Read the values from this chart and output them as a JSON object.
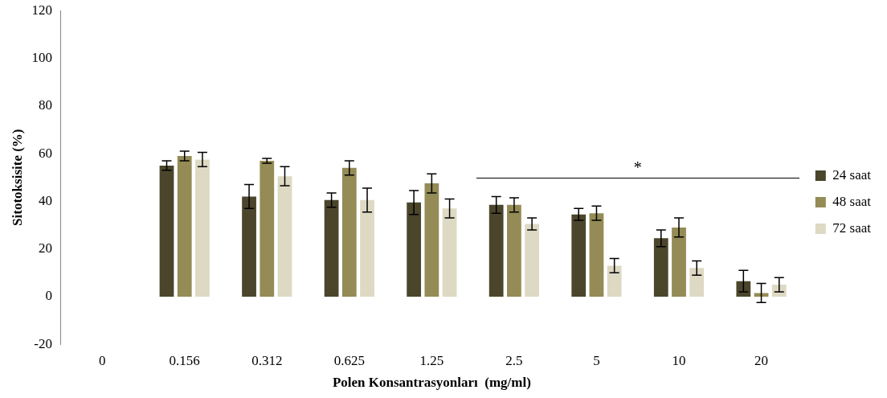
{
  "chart_data": {
    "type": "bar",
    "xlabel": "Polen Konsantrasyonları  (mg/ml)",
    "ylabel": "Sitotoksisite (%)",
    "categories": [
      "0",
      "0.156",
      "0.312",
      "0.625",
      "1.25",
      "2.5",
      "5",
      "10",
      "20"
    ],
    "series": [
      {
        "name": "24 saat",
        "color": "#4b452c",
        "values": [
          0,
          55,
          42,
          40.5,
          39.5,
          38.5,
          34.5,
          24.5,
          6.5
        ],
        "errors": [
          null,
          2,
          5,
          3,
          5,
          3.5,
          2.5,
          3.5,
          4.5
        ]
      },
      {
        "name": "48 saat",
        "color": "#948b56",
        "values": [
          0,
          59,
          57,
          54,
          47.5,
          38.5,
          35,
          29,
          1.5
        ],
        "errors": [
          null,
          2,
          1,
          3,
          4,
          3,
          3,
          4,
          4
        ]
      },
      {
        "name": "72 saat",
        "color": "#ddd9c3",
        "values": [
          0,
          57.5,
          50.5,
          40.5,
          37,
          30.5,
          13,
          12,
          5
        ],
        "errors": [
          null,
          3,
          4,
          5,
          4,
          2.5,
          3,
          3,
          3
        ]
      }
    ],
    "ylim": [
      -20,
      120
    ],
    "yticks": [
      -20,
      0,
      20,
      40,
      60,
      80,
      100,
      120
    ],
    "grid": false,
    "legend": "right",
    "annotations": [
      "*"
    ]
  }
}
